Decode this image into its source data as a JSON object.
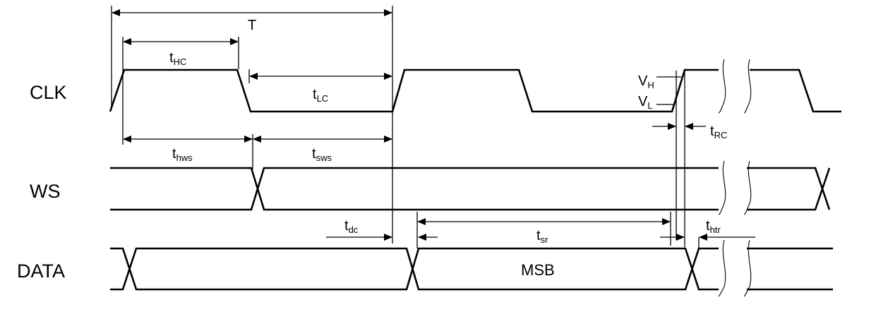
{
  "signals": {
    "clk": "CLK",
    "ws": "WS",
    "data": "DATA"
  },
  "timing": {
    "period": "T",
    "t_hc": {
      "base": "t",
      "sub": "HC"
    },
    "t_lc": {
      "base": "t",
      "sub": "LC"
    },
    "t_rc": {
      "base": "t",
      "sub": "RC"
    },
    "t_hws": {
      "base": "t",
      "sub": "hws"
    },
    "t_sws": {
      "base": "t",
      "sub": "sws"
    },
    "t_dc": {
      "base": "t",
      "sub": "dc"
    },
    "t_sr": {
      "base": "t",
      "sub": "sr"
    },
    "t_htr": {
      "base": "t",
      "sub": "htr"
    }
  },
  "levels": {
    "v_high": {
      "base": "V",
      "sub": "H"
    },
    "v_low": {
      "base": "V",
      "sub": "L"
    }
  },
  "data_field": "MSB"
}
